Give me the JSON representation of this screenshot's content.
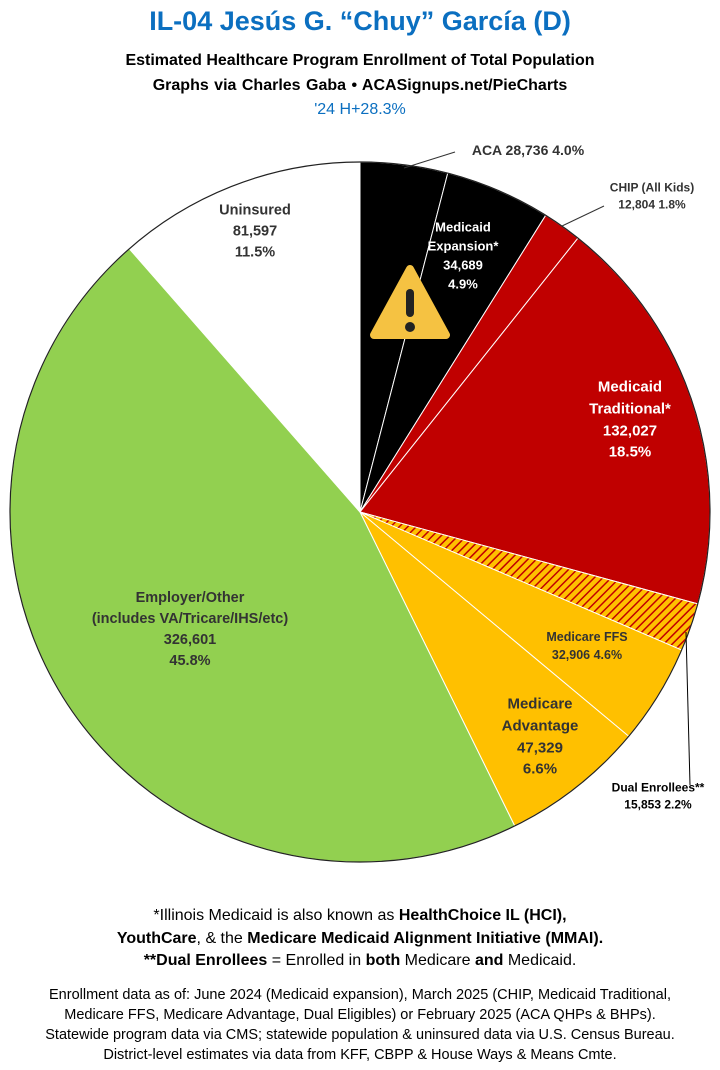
{
  "chart_data": {
    "type": "pie",
    "title": "IL-04 Jesús G. “Chuy” García (D)",
    "subtitle": "Estimated Healthcare Program Enrollment of Total Population",
    "credit": "Graphs via Charles Gaba • ACASignups.net/PieCharts",
    "annotation": "'24 H+28.3%",
    "categories": [
      "ACA",
      "Medicaid Expansion*",
      "CHIP (All Kids)",
      "Medicaid Traditional*",
      "Dual Enrollees**",
      "Medicare FFS",
      "Medicare Advantage",
      "Employer/Other (includes VA/Tricare/IHS/etc)",
      "Uninsured"
    ],
    "values": [
      28736,
      34689,
      12804,
      132027,
      15853,
      32906,
      47329,
      326601,
      81597
    ],
    "value_labels": [
      "28,736",
      "34,689",
      "12,804",
      "132,027",
      "15,853",
      "32,906",
      "47,329",
      "326,601",
      "81,597"
    ],
    "percents": [
      4.0,
      4.9,
      1.8,
      18.5,
      2.2,
      4.6,
      6.6,
      45.8,
      11.5
    ],
    "percent_labels": [
      "4.0%",
      "4.9%",
      "1.8%",
      "18.5%",
      "2.2%",
      "4.6%",
      "6.6%",
      "45.8%",
      "11.5%"
    ],
    "colors": [
      "#000000",
      "#000000",
      "#c00000",
      "#c00000",
      "#ffc000",
      "#ffc000",
      "#ffc000",
      "#92d050",
      "#ffffff"
    ],
    "hatched": [
      false,
      false,
      false,
      false,
      true,
      false,
      false,
      false,
      false
    ],
    "footnote": [
      [
        "*Illinois Medicaid is also known as ",
        "HealthChoice IL (HCI),"
      ],
      [
        "YouthCare",
        ", & the ",
        "Medicare Medicaid Alignment Initiative (MMAI)."
      ],
      [
        "**Dual Enrollees",
        " = Enrolled in ",
        "both",
        " Medicare ",
        "and",
        " Medicaid."
      ]
    ],
    "sources": [
      "Enrollment data as of: June 2024 (Medicaid expansion), March 2025 (CHIP, Medicaid Traditional,",
      "Medicare FFS, Medicare Advantage, Dual Eligibles) or February 2025 (ACA QHPs & BHPs).",
      "Statewide program data via CMS; statewide population & uninsured data via U.S. Census Bureau.",
      "District-level estimates via data from KFF, CBPP & House Ways & Means Cmte."
    ]
  }
}
